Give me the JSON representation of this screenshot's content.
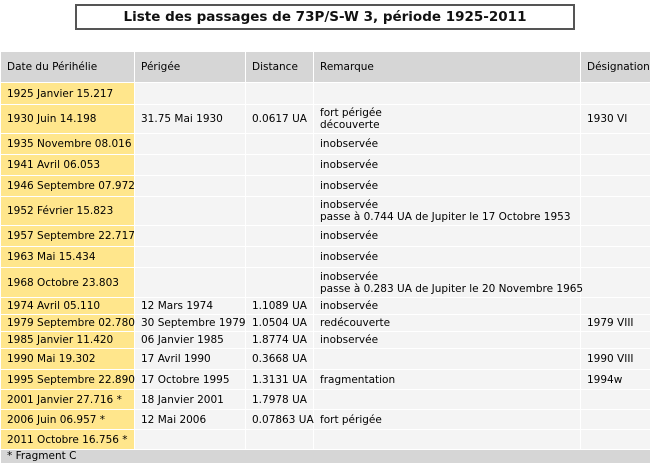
{
  "title": "Liste des passages de 73P/S-W 3, période 1925-2011",
  "columns": [
    "Date du Périhélie",
    "Périgée",
    "Distance",
    "Remarque",
    "Désignation"
  ],
  "rows": [
    {
      "date": "1925 Janvier 15.217",
      "perigee": "",
      "distance": "",
      "remark": [],
      "designation": "",
      "h": 22
    },
    {
      "date": "1930 Juin 14.198",
      "perigee": "31.75 Mai 1930",
      "distance": "0.0617 UA",
      "remark": [
        "fort périgée",
        "découverte"
      ],
      "designation": "1930 VI",
      "h": 28
    },
    {
      "date": "1935 Novembre 08.016",
      "perigee": "",
      "distance": "",
      "remark": [
        "inobservée"
      ],
      "designation": "",
      "h": 21
    },
    {
      "date": "1941 Avril 06.053",
      "perigee": "",
      "distance": "",
      "remark": [
        "inobservée"
      ],
      "designation": "",
      "h": 21
    },
    {
      "date": "1946 Septembre 07.972",
      "perigee": "",
      "distance": "",
      "remark": [
        "inobservée"
      ],
      "designation": "",
      "h": 21
    },
    {
      "date": "1952 Février 15.823",
      "perigee": "",
      "distance": "",
      "remark": [
        "inobservée",
        "passe à 0.744 UA de Jupiter le 17 Octobre 1953"
      ],
      "designation": "",
      "h": 29
    },
    {
      "date": "1957 Septembre 22.717",
      "perigee": "",
      "distance": "",
      "remark": [
        "inobservée"
      ],
      "designation": "",
      "h": 21
    },
    {
      "date": "1963 Mai 15.434",
      "perigee": "",
      "distance": "",
      "remark": [
        "inobservée"
      ],
      "designation": "",
      "h": 21
    },
    {
      "date": "1968 Octobre 23.803",
      "perigee": "",
      "distance": "",
      "remark": [
        "inobservée",
        "passe à 0.283 UA de Jupiter le 20 Novembre 1965"
      ],
      "designation": "",
      "h": 30
    },
    {
      "date": "1974 Avril 05.110",
      "perigee": "12 Mars 1974",
      "distance": "1.1089 UA",
      "remark": [
        "inobservée"
      ],
      "designation": "",
      "h": 16
    },
    {
      "date": "1979 Septembre 02.780",
      "perigee": "30 Septembre 1979",
      "distance": "1.0504 UA",
      "remark": [
        "redécouverte"
      ],
      "designation": "1979 VIII",
      "h": 16
    },
    {
      "date": "1985 Janvier 11.420",
      "perigee": "06 Janvier 1985",
      "distance": "1.8774 UA",
      "remark": [
        "inobservée"
      ],
      "designation": "",
      "h": 16
    },
    {
      "date": "1990 Mai 19.302",
      "perigee": "17 Avril 1990",
      "distance": "0.3668 UA",
      "remark": [],
      "designation": "1990 VIII",
      "h": 21
    },
    {
      "date": "1995 Septembre 22.890",
      "perigee": "17 Octobre 1995",
      "distance": "1.3131 UA",
      "remark": [
        "fragmentation"
      ],
      "designation": "1994w",
      "h": 20
    },
    {
      "date": "2001 Janvier 27.716 *",
      "perigee": "18 Janvier 2001",
      "distance": "1.7978 UA",
      "remark": [],
      "designation": "",
      "h": 20
    },
    {
      "date": "2006 Juin 06.957 *",
      "perigee": "12 Mai 2006",
      "distance": "0.07863 UA",
      "remark": [
        "fort périgée"
      ],
      "designation": "",
      "h": 20
    },
    {
      "date": "2011 Octobre 16.756 *",
      "perigee": "",
      "distance": "",
      "remark": [],
      "designation": "",
      "h": 20
    }
  ],
  "footnote": "* Fragment C"
}
